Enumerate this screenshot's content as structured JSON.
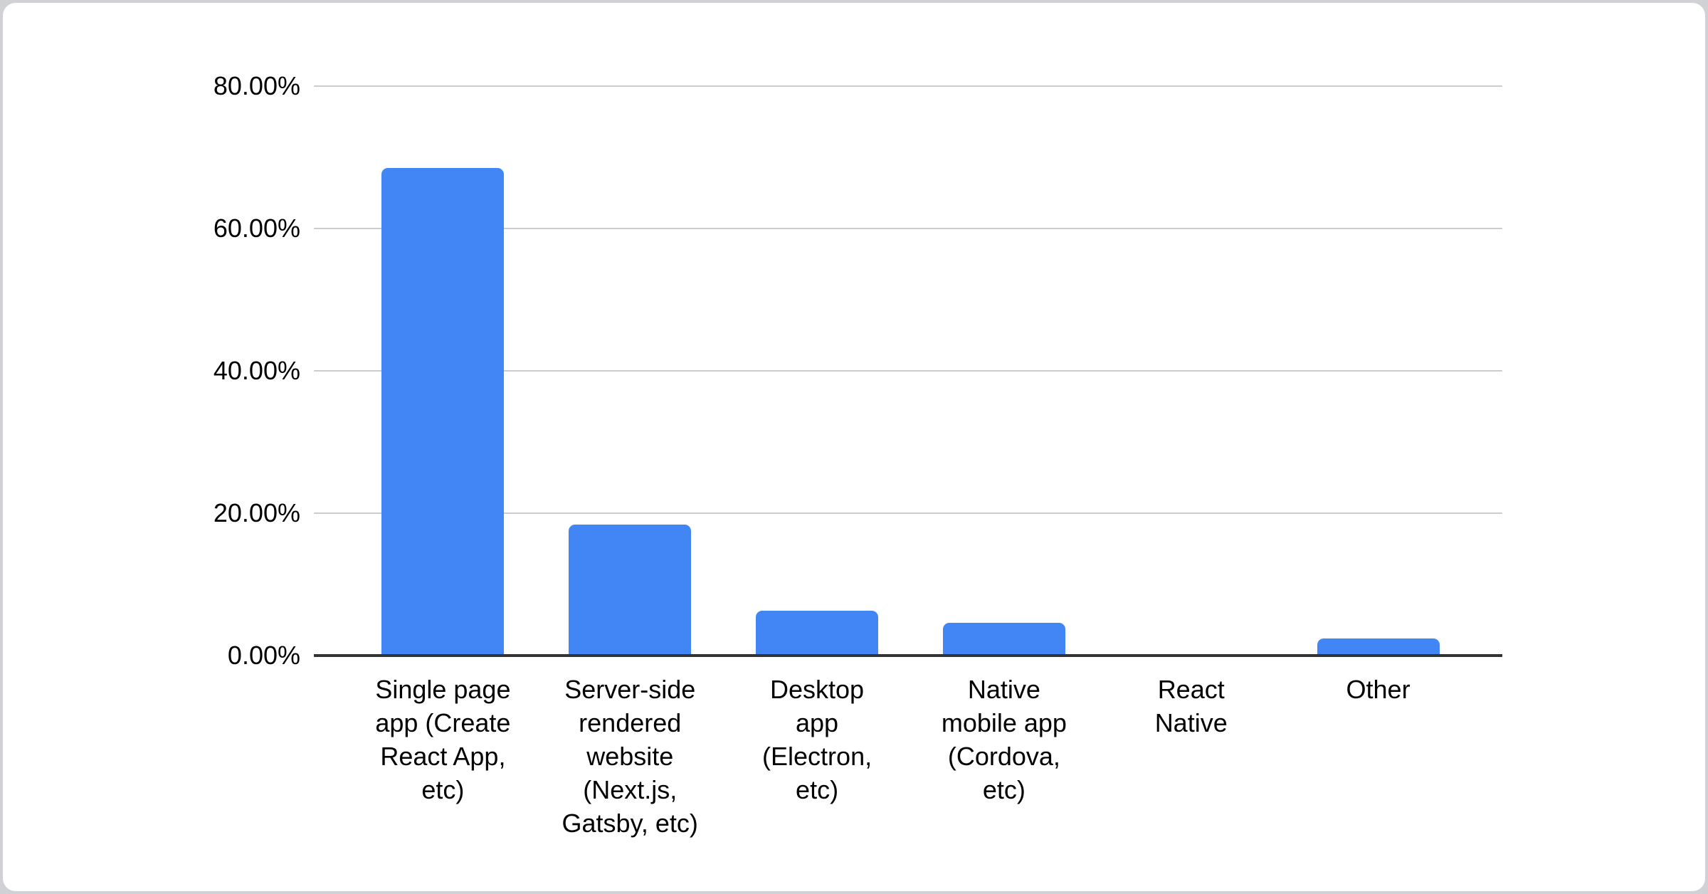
{
  "chart_data": {
    "type": "bar",
    "title": "",
    "xlabel": "",
    "ylabel": "",
    "legend": "none",
    "grid": true,
    "categories": [
      "Single page app (Create React App, etc)",
      "Server-side rendered website (Next.js, Gatsby, etc)",
      "Desktop app (Electron, etc)",
      "Native mobile app (Cordova, etc)",
      "React Native",
      "Other"
    ],
    "values": [
      68.5,
      18.4,
      6.3,
      4.6,
      0,
      2.4
    ],
    "value_unit": "%",
    "y_tick_labels": [
      "80.00%",
      "60.00%",
      "40.00%",
      "20.00%",
      "0.00%"
    ],
    "y_tick_values": [
      80,
      60,
      40,
      20,
      0
    ],
    "ylim": [
      0,
      80
    ],
    "colors": {
      "bar": "#4285f4",
      "gridline": "#cccccc",
      "axis_line": "#333333",
      "text": "#000000",
      "card_background": "#ffffff",
      "page_background": "#d0d1d5"
    }
  }
}
